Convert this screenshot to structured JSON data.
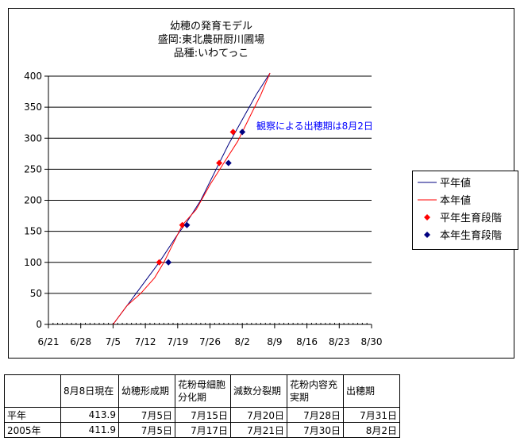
{
  "chart_data": {
    "type": "line",
    "title": [
      "幼穂の発育モデル",
      "盛岡:東北農研厨川圃場",
      "品種:いわてっこ"
    ],
    "x_tick_labels": [
      "6/21",
      "6/28",
      "7/5",
      "7/12",
      "7/19",
      "7/26",
      "8/2",
      "8/9",
      "8/16",
      "8/23",
      "8/30"
    ],
    "x_ticks": [
      "2005-06-21",
      "2005-06-28",
      "2005-07-05",
      "2005-07-12",
      "2005-07-19",
      "2005-07-26",
      "2005-08-02",
      "2005-08-09",
      "2005-08-16",
      "2005-08-23",
      "2005-08-30"
    ],
    "xlim": [
      "2005-06-21",
      "2005-08-30"
    ],
    "ylim": [
      0,
      400
    ],
    "y_ticks": [
      0,
      50,
      100,
      150,
      200,
      250,
      300,
      350,
      400
    ],
    "grid": "horizontal",
    "legend_position": "right",
    "series": [
      {
        "name": "平年値",
        "kind": "line",
        "color": "#000080",
        "points": [
          [
            "2005-07-05",
            0
          ],
          [
            "2005-07-09",
            40
          ],
          [
            "2005-07-12",
            70
          ],
          [
            "2005-07-15",
            100
          ],
          [
            "2005-07-19",
            145
          ],
          [
            "2005-07-21",
            165
          ],
          [
            "2005-07-24",
            200
          ],
          [
            "2005-07-27",
            245
          ],
          [
            "2005-07-30",
            290
          ],
          [
            "2005-08-02",
            330
          ],
          [
            "2005-08-05",
            370
          ],
          [
            "2005-08-08",
            405
          ]
        ]
      },
      {
        "name": "本年値",
        "kind": "line",
        "color": "#ff0000",
        "points": [
          [
            "2005-07-05",
            0
          ],
          [
            "2005-07-08",
            30
          ],
          [
            "2005-07-11",
            50
          ],
          [
            "2005-07-14",
            75
          ],
          [
            "2005-07-16",
            100
          ],
          [
            "2005-07-18",
            130
          ],
          [
            "2005-07-20",
            160
          ],
          [
            "2005-07-23",
            185
          ],
          [
            "2005-07-26",
            225
          ],
          [
            "2005-07-29",
            260
          ],
          [
            "2005-08-01",
            295
          ],
          [
            "2005-08-04",
            340
          ],
          [
            "2005-08-06",
            370
          ],
          [
            "2005-08-08",
            405
          ]
        ]
      },
      {
        "name": "平年生育段階",
        "kind": "marker",
        "marker": "diamond",
        "color": "#ff0000",
        "points": [
          [
            "2005-07-15",
            100
          ],
          [
            "2005-07-20",
            160
          ],
          [
            "2005-07-28",
            260
          ],
          [
            "2005-07-31",
            310
          ]
        ]
      },
      {
        "name": "本年生育段階",
        "kind": "marker",
        "marker": "diamond",
        "color": "#000080",
        "points": [
          [
            "2005-07-17",
            100
          ],
          [
            "2005-07-21",
            160
          ],
          [
            "2005-07-30",
            260
          ],
          [
            "2005-08-02",
            310
          ]
        ]
      }
    ],
    "annotations": [
      {
        "text": "観察による出穂期は8月2日",
        "color": "#0000ff"
      }
    ]
  },
  "table": {
    "columns": [
      "",
      "8月8日現在",
      "幼穂形成期",
      "花粉母細胞分化期",
      "減数分裂期",
      "花粉内容充実期",
      "出穂期"
    ],
    "rows": [
      [
        "平年",
        "413.9",
        "7月5日",
        "7月15日",
        "7月20日",
        "7月28日",
        "7月31日"
      ],
      [
        "2005年",
        "411.9",
        "7月5日",
        "7月17日",
        "7月21日",
        "7月30日",
        "8月2日"
      ]
    ]
  }
}
